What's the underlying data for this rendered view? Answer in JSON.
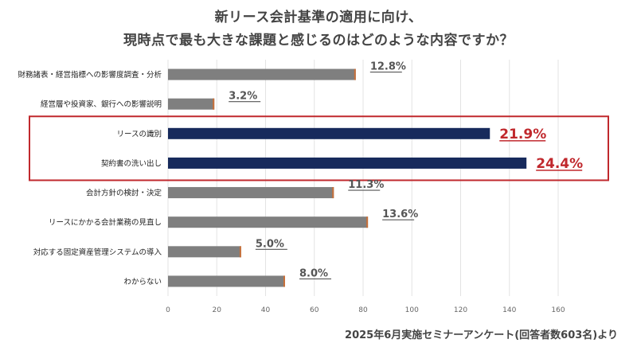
{
  "title_line1": "新リース会計基準の適用に向け、",
  "title_line2": "現時点で最も大きな課題と感じるのはどのような内容ですか？",
  "footnote": "2025年6月実施セミナーアンケート(回答者数603名)より",
  "colors": {
    "normal": "#7f7f7f",
    "highlight": "#172a5c",
    "highlight_box": "#c0282d",
    "highlight_label": "#c0282d",
    "label": "#555555"
  },
  "chart_data": {
    "type": "bar",
    "orientation": "horizontal",
    "categories": [
      "財務諸表・経営指標への影響度調査・分析",
      "経営層や投資家、銀行への影響説明",
      "リースの識別",
      "契約書の洗い出し",
      "会計方針の検討・決定",
      "リースにかかる会計業務の見直し",
      "対応する固定資産管理システムの導入",
      "わからない"
    ],
    "values": [
      77,
      19,
      132,
      147,
      68,
      82,
      30,
      48
    ],
    "data_labels": [
      "12.8%",
      "3.2%",
      "21.9%",
      "24.4%",
      "11.3%",
      "13.6%",
      "5.0%",
      "8.0%"
    ],
    "highlighted": [
      false,
      false,
      true,
      true,
      false,
      false,
      false,
      false
    ],
    "xlim": [
      0,
      160
    ],
    "xticks": [
      0,
      20,
      40,
      60,
      80,
      100,
      120,
      140,
      160
    ],
    "grid": true
  }
}
